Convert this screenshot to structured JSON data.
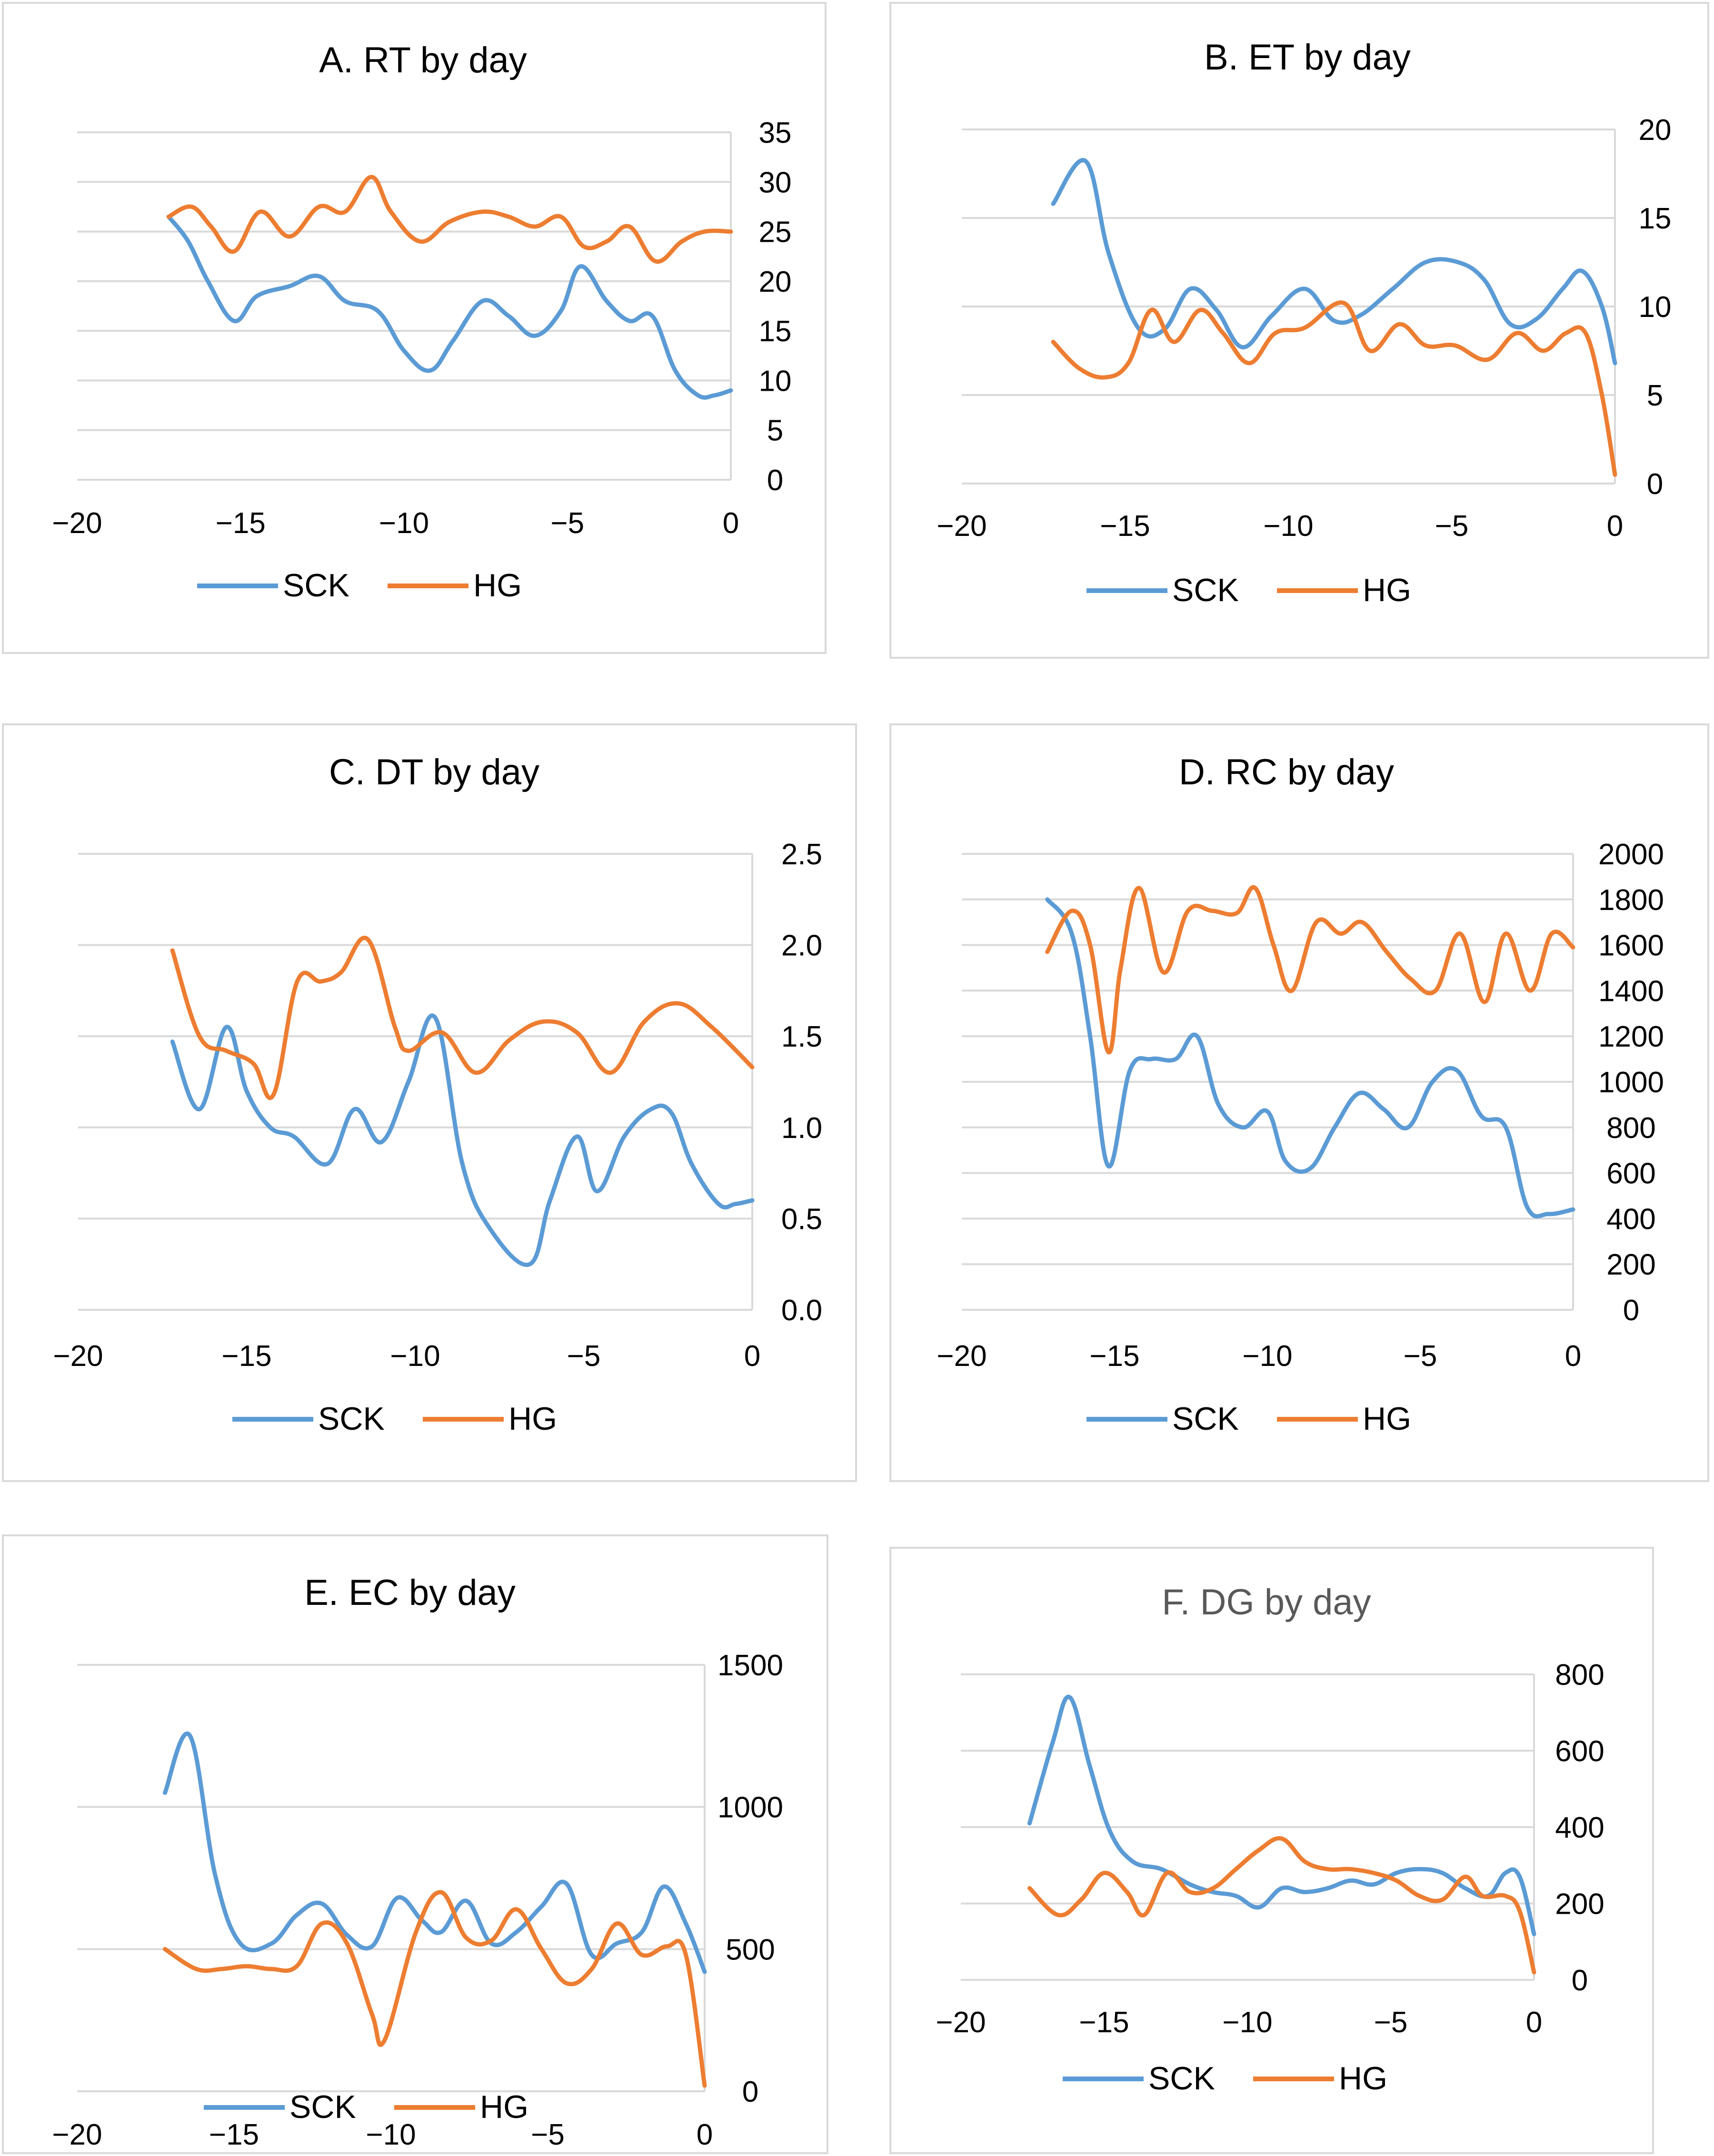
{
  "colors": {
    "SCK": "#5b9bd5",
    "HG": "#ed7d31"
  },
  "chart_data": [
    {
      "type": "line",
      "title": "A. RT by day",
      "xlim": [
        -20,
        0
      ],
      "xticks": [
        "−20",
        "−15",
        "−10",
        "−5",
        "0"
      ],
      "ylim": [
        0,
        35
      ],
      "yticks": [
        "0",
        "5",
        "10",
        "15",
        "20",
        "25",
        "30",
        "35"
      ],
      "series": [
        {
          "name": "SCK",
          "x": [
            -17.2,
            -16.6,
            -16,
            -15.2,
            -14.5,
            -13.5,
            -12.6,
            -11.8,
            -10.8,
            -10,
            -9.2,
            -8.5,
            -7.6,
            -6.8,
            -6,
            -5.2,
            -4.6,
            -3.8,
            -3.1,
            -2.4,
            -1.7,
            -1,
            -0.5,
            0
          ],
          "y": [
            26.5,
            24,
            20,
            16,
            18.5,
            19.5,
            20.5,
            18,
            17,
            13,
            11,
            14,
            18,
            16.5,
            14.5,
            17,
            21.5,
            18,
            16,
            16.5,
            11,
            8.5,
            8.5,
            9
          ]
        },
        {
          "name": "HG",
          "x": [
            -17.2,
            -16.5,
            -15.9,
            -15.2,
            -14.4,
            -13.5,
            -12.6,
            -11.8,
            -11,
            -10.4,
            -9.5,
            -8.6,
            -7.6,
            -6.8,
            -6,
            -5.2,
            -4.5,
            -3.8,
            -3.1,
            -2.3,
            -1.5,
            -0.8,
            0
          ],
          "y": [
            26.5,
            27.5,
            25.5,
            23,
            27,
            24.5,
            27.5,
            27,
            30.5,
            27,
            24,
            26,
            27,
            26.5,
            25.5,
            26.5,
            23.5,
            24,
            25.5,
            22,
            24,
            25,
            25
          ]
        }
      ]
    },
    {
      "type": "line",
      "title": "B. ET by day",
      "xlim": [
        -20,
        0
      ],
      "xticks": [
        "−20",
        "−15",
        "−10",
        "−5",
        "0"
      ],
      "ylim": [
        0,
        20
      ],
      "yticks": [
        "0",
        "5",
        "10",
        "15",
        "20"
      ],
      "series": [
        {
          "name": "SCK",
          "x": [
            -17.2,
            -16.2,
            -15.5,
            -14.6,
            -13.8,
            -13,
            -12.2,
            -11.4,
            -10.5,
            -9.5,
            -8.6,
            -7.8,
            -6.8,
            -5.8,
            -4.8,
            -4,
            -3.2,
            -2.4,
            -1.6,
            -1,
            -0.4,
            0
          ],
          "y": [
            15.8,
            18.2,
            13,
            8.8,
            8.7,
            11,
            9.8,
            7.7,
            9.5,
            11,
            9.2,
            9.5,
            11,
            12.5,
            12.5,
            11.5,
            9,
            9.3,
            11,
            12,
            10,
            6.8
          ]
        },
        {
          "name": "HG",
          "x": [
            -17.2,
            -16.4,
            -15.6,
            -14.9,
            -14.2,
            -13.5,
            -12.7,
            -12,
            -11.2,
            -10.4,
            -9.5,
            -8.3,
            -7.5,
            -6.6,
            -5.8,
            -4.9,
            -3.9,
            -3,
            -2.2,
            -1.5,
            -0.9,
            -0.4,
            0
          ],
          "y": [
            8,
            6.5,
            6,
            6.8,
            9.8,
            8,
            9.8,
            8.5,
            6.8,
            8.5,
            8.8,
            10.2,
            7.5,
            9,
            7.8,
            7.8,
            7,
            8.5,
            7.5,
            8.5,
            8.5,
            5,
            0.5
          ]
        }
      ]
    },
    {
      "type": "line",
      "title": "C. DT by day",
      "xlim": [
        -20,
        0
      ],
      "xticks": [
        "−20",
        "−15",
        "−10",
        "−5",
        "0"
      ],
      "ylim": [
        0,
        2.5
      ],
      "yticks": [
        "0.0",
        "0.5",
        "1.0",
        "1.5",
        "2.0",
        "2.5"
      ],
      "series": [
        {
          "name": "SCK",
          "x": [
            -17.2,
            -16.4,
            -15.6,
            -15,
            -14.3,
            -13.6,
            -12.6,
            -11.8,
            -11,
            -10.2,
            -9.4,
            -8.6,
            -7.8,
            -6.6,
            -6,
            -5.2,
            -4.6,
            -3.8,
            -3,
            -2.4,
            -1.8,
            -1,
            -0.5,
            0
          ],
          "y": [
            1.47,
            1.1,
            1.55,
            1.2,
            1.0,
            0.95,
            0.8,
            1.1,
            0.92,
            1.25,
            1.6,
            0.8,
            0.45,
            0.25,
            0.6,
            0.95,
            0.65,
            0.95,
            1.1,
            1.08,
            0.8,
            0.58,
            0.58,
            0.6
          ]
        },
        {
          "name": "HG",
          "x": [
            -17.2,
            -16.4,
            -15.6,
            -14.8,
            -14.2,
            -13.5,
            -12.8,
            -12.2,
            -11.4,
            -10.6,
            -10.2,
            -9.2,
            -8.2,
            -7.2,
            -6.2,
            -5.2,
            -4.2,
            -3.2,
            -2.2,
            -1.2,
            0
          ],
          "y": [
            1.97,
            1.5,
            1.42,
            1.35,
            1.18,
            1.8,
            1.8,
            1.85,
            2.03,
            1.55,
            1.42,
            1.52,
            1.3,
            1.48,
            1.58,
            1.52,
            1.3,
            1.58,
            1.68,
            1.55,
            1.33
          ]
        }
      ]
    },
    {
      "type": "line",
      "title": "D. RC by day",
      "xlim": [
        -20,
        0
      ],
      "xticks": [
        "−20",
        "−15",
        "−10",
        "−5",
        "0"
      ],
      "ylim": [
        0,
        2000
      ],
      "yticks": [
        "0",
        "200",
        "400",
        "600",
        "800",
        "1000",
        "1200",
        "1400",
        "1600",
        "1800",
        "2000"
      ],
      "series": [
        {
          "name": "SCK",
          "x": [
            -17.2,
            -16.4,
            -15.8,
            -15.2,
            -14.5,
            -13.8,
            -13,
            -12.3,
            -11.6,
            -10.8,
            -10,
            -9.4,
            -8.6,
            -7.8,
            -7,
            -6.2,
            -5.4,
            -4.6,
            -3.8,
            -3,
            -2.2,
            -1.5,
            -0.8,
            0
          ],
          "y": [
            1800,
            1650,
            1200,
            630,
            1050,
            1100,
            1100,
            1200,
            900,
            800,
            870,
            650,
            620,
            800,
            950,
            880,
            800,
            1000,
            1050,
            850,
            800,
            450,
            420,
            440
          ]
        },
        {
          "name": "HG",
          "x": [
            -17.2,
            -16.4,
            -15.8,
            -15.2,
            -14.8,
            -14.2,
            -13.4,
            -12.6,
            -11.8,
            -11,
            -10.4,
            -9.8,
            -9.2,
            -8.4,
            -7.6,
            -6.9,
            -6.1,
            -5.3,
            -4.5,
            -3.7,
            -2.9,
            -2.2,
            -1.4,
            -0.7,
            0
          ],
          "y": [
            1570,
            1750,
            1600,
            1130,
            1500,
            1850,
            1480,
            1750,
            1750,
            1740,
            1850,
            1600,
            1400,
            1700,
            1650,
            1700,
            1570,
            1450,
            1400,
            1650,
            1350,
            1650,
            1400,
            1650,
            1590
          ]
        }
      ]
    },
    {
      "type": "line",
      "title": "E. EC by day",
      "xlim": [
        -20,
        0
      ],
      "xticks": [
        "−20",
        "−15",
        "−10",
        "−5",
        "0"
      ],
      "ylim": [
        0,
        1500
      ],
      "yticks": [
        "0",
        "500",
        "1000",
        "1500"
      ],
      "series": [
        {
          "name": "SCK",
          "x": [
            -17.2,
            -16.4,
            -15.6,
            -14.8,
            -13.8,
            -13,
            -12.2,
            -11.4,
            -10.6,
            -9.8,
            -9,
            -8.4,
            -7.6,
            -6.8,
            -6,
            -5.2,
            -4.4,
            -3.6,
            -2.8,
            -2,
            -1.3,
            -0.6,
            0
          ],
          "y": [
            1050,
            1250,
            760,
            520,
            520,
            620,
            660,
            550,
            510,
            680,
            600,
            560,
            670,
            520,
            560,
            650,
            730,
            480,
            520,
            560,
            720,
            590,
            420
          ]
        },
        {
          "name": "HG",
          "x": [
            -17.2,
            -16.2,
            -15.4,
            -14.6,
            -13.8,
            -13,
            -12.2,
            -11.4,
            -10.6,
            -10.2,
            -9.2,
            -8.4,
            -7.6,
            -6.8,
            -6,
            -5.2,
            -4.4,
            -3.6,
            -2.8,
            -2,
            -1.2,
            -0.6,
            0
          ],
          "y": [
            500,
            430,
            430,
            440,
            430,
            440,
            590,
            520,
            270,
            180,
            560,
            700,
            540,
            530,
            640,
            500,
            380,
            430,
            590,
            480,
            510,
            480,
            20
          ]
        }
      ]
    },
    {
      "type": "line",
      "title": "F. DG by day",
      "xlim": [
        -20,
        0
      ],
      "xticks": [
        "−20",
        "−15",
        "−10",
        "−5",
        "0"
      ],
      "ylim": [
        0,
        800
      ],
      "yticks": [
        "0",
        "200",
        "400",
        "600",
        "800"
      ],
      "series": [
        {
          "name": "SCK",
          "x": [
            -17.6,
            -16.8,
            -16.2,
            -15.5,
            -14.8,
            -14,
            -13,
            -12,
            -11.2,
            -10.4,
            -9.6,
            -8.8,
            -8,
            -7.2,
            -6.4,
            -5.6,
            -4.8,
            -4,
            -3.2,
            -2.4,
            -1.6,
            -1,
            -0.5,
            0
          ],
          "y": [
            410,
            620,
            740,
            560,
            390,
            310,
            290,
            250,
            230,
            220,
            190,
            240,
            230,
            240,
            260,
            250,
            280,
            290,
            280,
            240,
            220,
            280,
            270,
            120
          ]
        },
        {
          "name": "HG",
          "x": [
            -17.6,
            -16.6,
            -15.8,
            -15,
            -14.2,
            -13.6,
            -12.8,
            -12,
            -11.2,
            -10.4,
            -9.6,
            -8.8,
            -8,
            -7.2,
            -6.4,
            -5.6,
            -4.8,
            -4,
            -3.2,
            -2.4,
            -1.8,
            -1,
            -0.5,
            0
          ],
          "y": [
            240,
            170,
            210,
            280,
            230,
            170,
            280,
            230,
            240,
            290,
            340,
            370,
            310,
            290,
            290,
            280,
            260,
            220,
            210,
            270,
            220,
            220,
            180,
            20
          ]
        }
      ]
    }
  ]
}
